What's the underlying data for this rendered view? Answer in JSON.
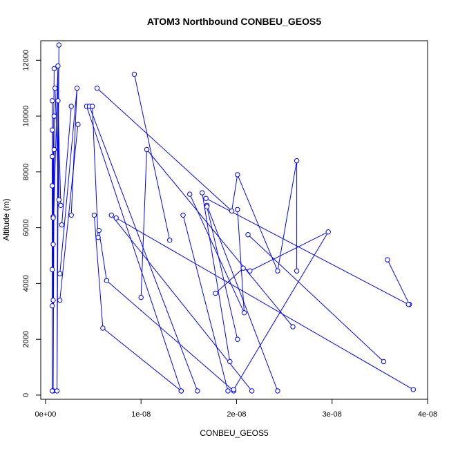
{
  "chart_data": {
    "type": "line",
    "title": "ATOM3 Northbound CONBEU_GEOS5",
    "xlabel": "CONBEU_GEOS5",
    "ylabel": "Altitude (m)",
    "xlim": [
      -5e-10,
      4e-08
    ],
    "ylim": [
      -150,
      12700
    ],
    "x_ticks": [
      0,
      1e-08,
      2e-08,
      3e-08,
      4e-08
    ],
    "x_tick_labels": [
      "0e+00",
      "1e-08",
      "2e-08",
      "3e-08",
      "4e-08"
    ],
    "y_ticks": [
      0,
      2000,
      4000,
      6000,
      8000,
      10000,
      12000
    ],
    "y_tick_labels": [
      "0",
      "2000",
      "4000",
      "6000",
      "8000",
      "10000",
      "12000"
    ],
    "series_color": "#0000ff",
    "marker": "open-circle",
    "lines": [
      [
        [
          9e-10,
          11700
        ],
        [
          7e-10,
          3200
        ],
        [
          9e-10,
          8800
        ],
        [
          8e-10,
          150
        ]
      ],
      [
        [
          1.4e-09,
          12550
        ],
        [
          1.2e-09,
          150
        ],
        [
          1.3e-09,
          11800
        ],
        [
          7e-10,
          4500
        ],
        [
          9e-10,
          10000
        ],
        [
          8e-10,
          3400
        ]
      ],
      [
        [
          1.6e-09,
          6800
        ],
        [
          1.3e-09,
          10550
        ],
        [
          1.4e-09,
          7000
        ],
        [
          1e-09,
          11000
        ]
      ],
      [
        [
          7e-10,
          9500
        ],
        [
          8e-10,
          6400
        ],
        [
          7e-10,
          10550
        ],
        [
          8e-10,
          5400
        ],
        [
          7e-10,
          7500
        ],
        [
          8e-10,
          6350
        ],
        [
          7e-10,
          8550
        ],
        [
          7e-10,
          150
        ]
      ],
      [
        [
          1.7e-09,
          6100
        ],
        [
          2.7e-09,
          10350
        ]
      ],
      [
        [
          1.5e-09,
          4350
        ],
        [
          3.3e-09,
          11000
        ],
        [
          2.7e-09,
          6450
        ]
      ],
      [
        [
          1.5e-09,
          3400
        ],
        [
          3.4e-09,
          9700
        ]
      ],
      [
        [
          4.3e-09,
          10350
        ],
        [
          1.42e-08,
          150
        ]
      ],
      [
        [
          4.6e-09,
          10350
        ],
        [
          1.59e-08,
          150
        ]
      ],
      [
        [
          4.9e-09,
          10350
        ],
        [
          5.5e-09,
          5650
        ]
      ],
      [
        [
          5.1e-09,
          6450
        ],
        [
          6e-09,
          2400
        ],
        [
          1.42e-08,
          150
        ]
      ],
      [
        [
          5.4e-09,
          11000
        ],
        [
          1.95e-08,
          6600
        ],
        [
          2.01e-08,
          7900
        ],
        [
          2.43e-08,
          4450
        ],
        [
          2.63e-08,
          8400
        ],
        [
          2.63e-08,
          4450
        ]
      ],
      [
        [
          5.6e-09,
          5900
        ],
        [
          6.4e-09,
          4100
        ],
        [
          1.97e-08,
          150
        ]
      ],
      [
        [
          6.9e-09,
          6450
        ],
        [
          2.16e-08,
          150
        ]
      ],
      [
        [
          9.3e-09,
          11500
        ],
        [
          1.3e-08,
          5550
        ]
      ],
      [
        [
          1e-08,
          3500
        ],
        [
          1.06e-08,
          8800
        ],
        [
          2.59e-08,
          2450
        ]
      ],
      [
        [
          1.44e-08,
          6450
        ],
        [
          1.91e-08,
          150
        ]
      ],
      [
        [
          1.51e-08,
          7200
        ],
        [
          2.08e-08,
          2950
        ],
        [
          2.01e-08,
          6650
        ]
      ],
      [
        [
          1.64e-08,
          7250
        ],
        [
          1.93e-08,
          1200
        ]
      ],
      [
        [
          1.69e-08,
          6800
        ],
        [
          2.43e-08,
          150
        ]
      ],
      [
        [
          1.69e-08,
          6750
        ],
        [
          2.01e-08,
          2000
        ]
      ],
      [
        [
          1.78e-08,
          3650
        ],
        [
          2.07e-08,
          4550
        ],
        [
          2.14e-08,
          4450
        ],
        [
          2.96e-08,
          5850
        ],
        [
          1.97e-08,
          200
        ]
      ],
      [
        [
          2.12e-08,
          5750
        ],
        [
          3.54e-08,
          1200
        ]
      ],
      [
        [
          7.4e-09,
          6350
        ],
        [
          3.85e-08,
          200
        ]
      ],
      [
        [
          3.58e-08,
          4850
        ],
        [
          3.81e-08,
          3250
        ]
      ],
      [
        [
          1.68e-08,
          7050
        ],
        [
          3.8e-08,
          3250
        ]
      ]
    ]
  }
}
